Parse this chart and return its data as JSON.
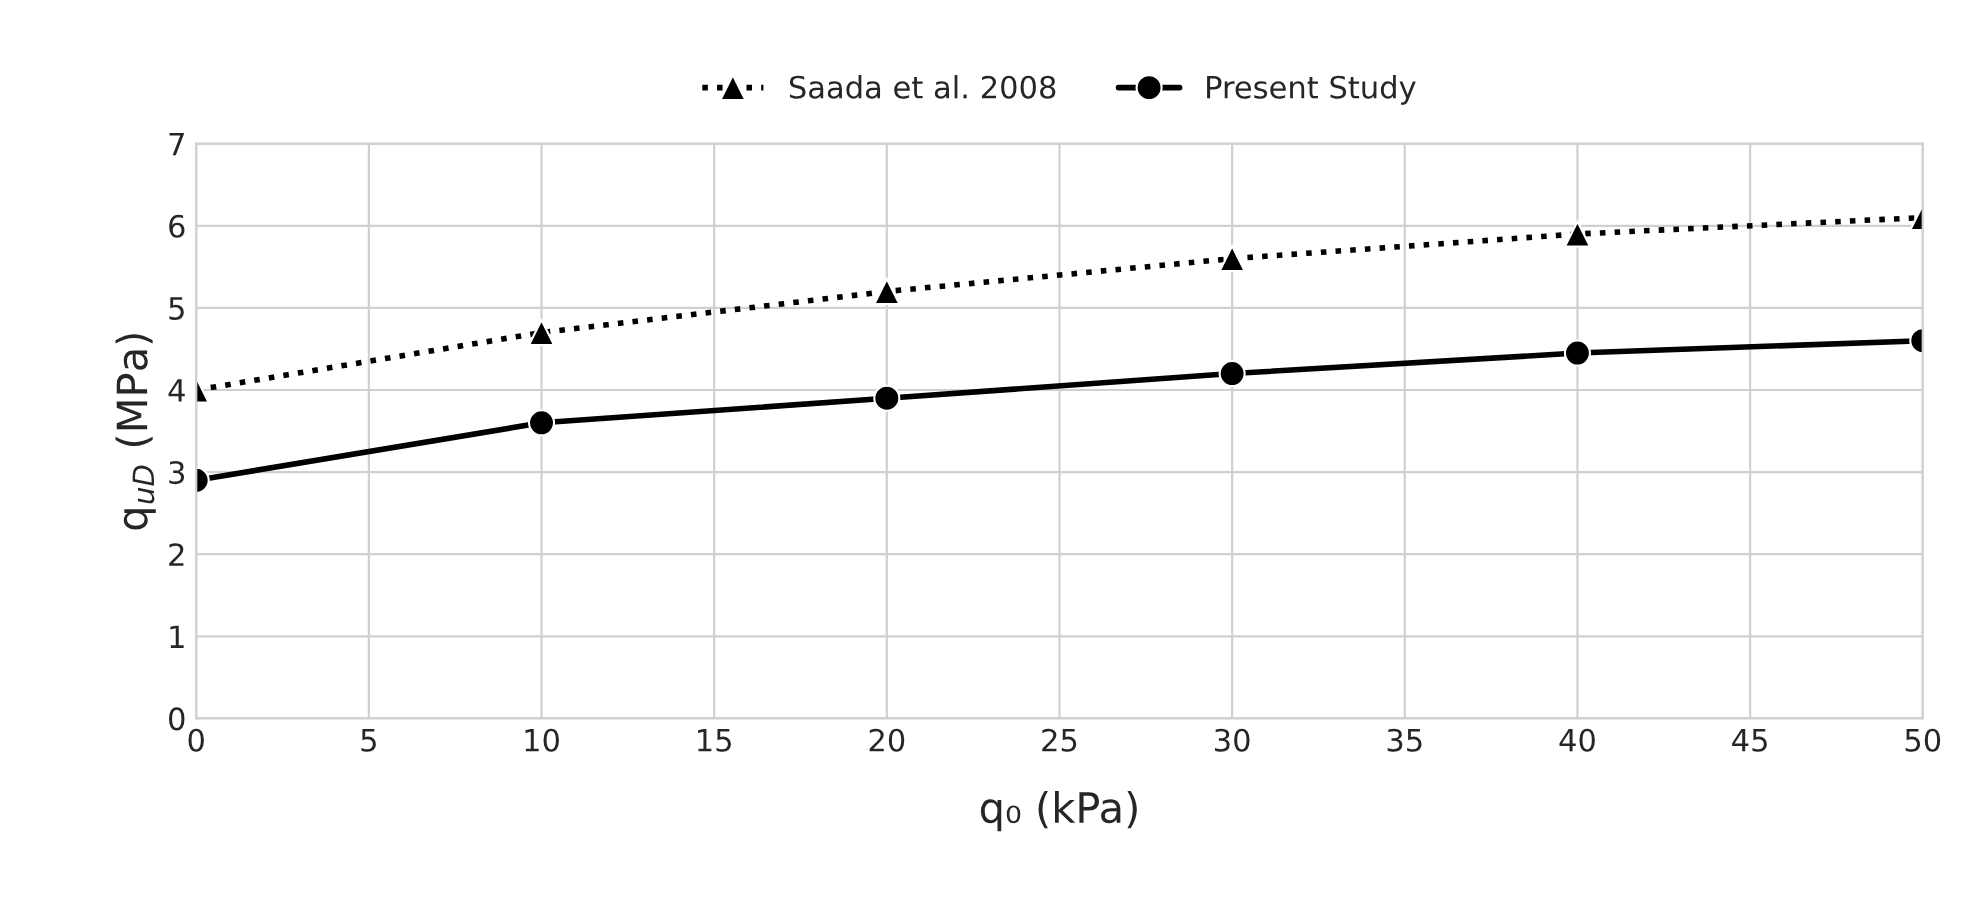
{
  "chart_data": {
    "type": "line",
    "xlabel": "q₀ (kPa)",
    "ylabel": "q$_{uD}$ (MPa)",
    "x": [
      0,
      10,
      20,
      30,
      40,
      50
    ],
    "series": [
      {
        "name": "Saada et al. 2008",
        "color": "#000000",
        "values": [
          4.0,
          4.7,
          5.2,
          5.6,
          5.9,
          6.1
        ],
        "marker": "triangle",
        "line_style": "dotted"
      },
      {
        "name": "Present Study",
        "color": "#000000",
        "values": [
          2.9,
          3.6,
          3.9,
          4.2,
          4.45,
          4.6
        ],
        "marker": "circle",
        "line_style": "solid"
      }
    ],
    "xlim": [
      0,
      50
    ],
    "xticks": [
      0,
      5,
      10,
      15,
      20,
      25,
      30,
      35,
      40,
      45,
      50
    ],
    "ylim": [
      0,
      7
    ],
    "yticks": [
      0,
      1,
      2,
      3,
      4,
      5,
      6,
      7
    ],
    "grid": true,
    "legend": "top"
  }
}
